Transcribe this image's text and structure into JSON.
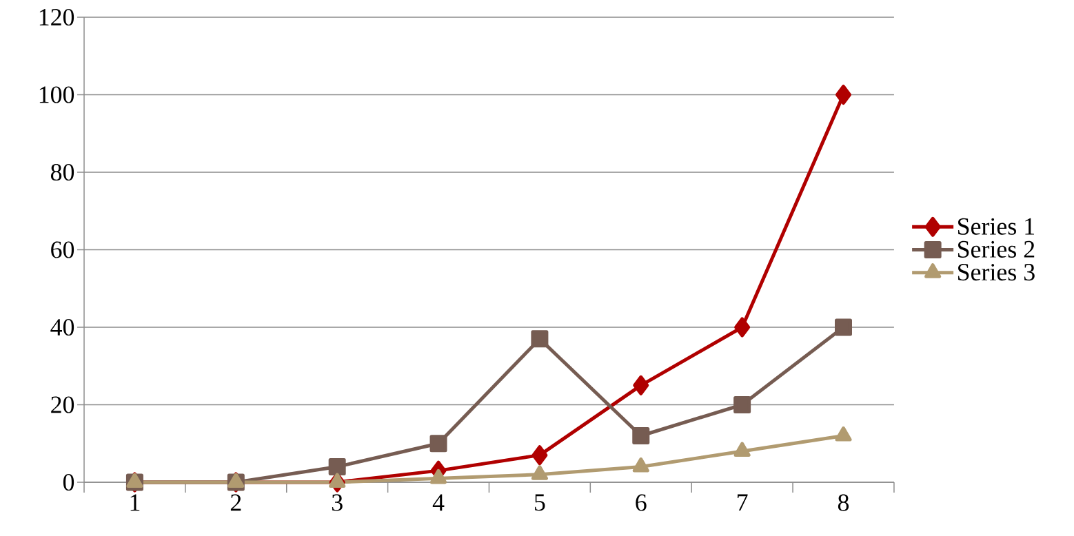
{
  "chart_data": {
    "type": "line",
    "categories": [
      "1",
      "2",
      "3",
      "4",
      "5",
      "6",
      "7",
      "8"
    ],
    "series": [
      {
        "name": "Series 1",
        "color": "#b00000",
        "marker": "diamond",
        "values": [
          0,
          0,
          0,
          3,
          7,
          25,
          40,
          100
        ]
      },
      {
        "name": "Series 2",
        "color": "#765c52",
        "marker": "square",
        "values": [
          0,
          0,
          4,
          10,
          37,
          12,
          20,
          40
        ]
      },
      {
        "name": "Series 3",
        "color": "#b19b70",
        "marker": "triangle",
        "values": [
          0,
          0,
          0,
          1,
          2,
          4,
          8,
          12
        ]
      }
    ],
    "ylim": [
      0,
      120
    ],
    "yticks": [
      0,
      20,
      40,
      60,
      80,
      100,
      120
    ],
    "grid": "y",
    "legend": "right",
    "line_style": "solid"
  }
}
